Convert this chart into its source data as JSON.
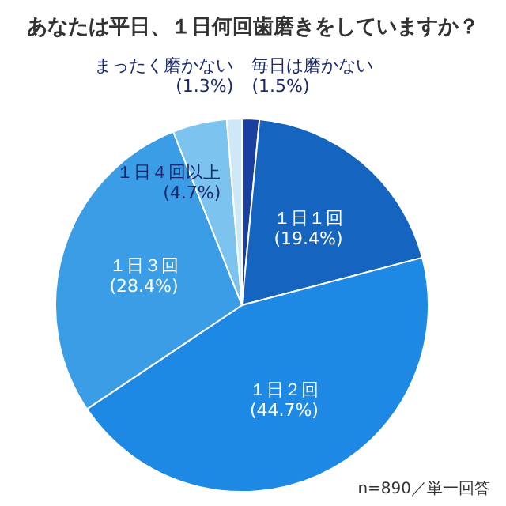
{
  "chart_data": {
    "type": "pie",
    "title": "あなたは平日、１日何回歯磨きをしていますか？",
    "categories": [
      "毎日は磨かない",
      "１日１回",
      "１日２回",
      "１日３回",
      "１日４回以上",
      "まったく磨かない"
    ],
    "values": [
      1.5,
      19.4,
      44.7,
      28.4,
      4.7,
      1.3
    ],
    "value_labels": [
      "(1.5%)",
      "(19.4%)",
      "(44.7%)",
      "(28.4%)",
      "(4.7%)",
      "(1.3%)"
    ],
    "colors": [
      "#1a3f9e",
      "#1565c0",
      "#1e88e5",
      "#3a9de6",
      "#7cc3ef",
      "#cfe8f7"
    ],
    "annotations": [
      "n=890／単一回答"
    ]
  }
}
